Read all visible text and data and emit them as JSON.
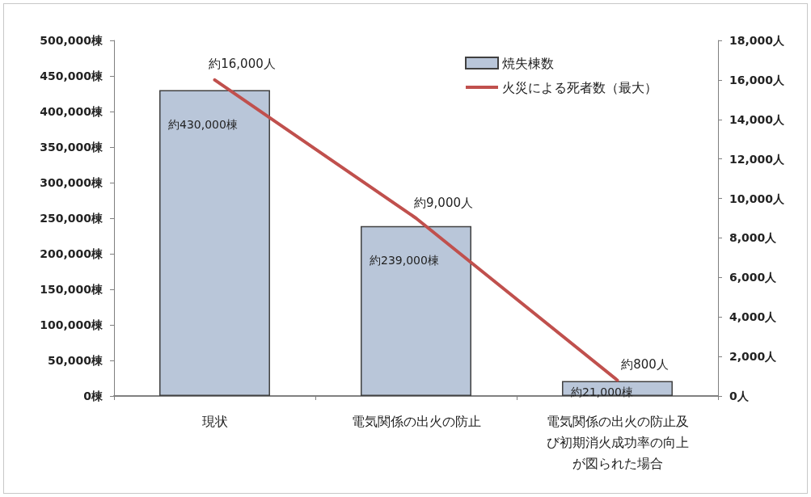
{
  "chart_data": {
    "type": "bar",
    "categories": [
      "現状",
      "電気関係の出火の防止",
      "電気関係の出火の防止及び初期消火成功率の向上が図られた場合"
    ],
    "series": [
      {
        "name": "焼失棟数",
        "color": "#b9c6d9",
        "values": [
          430000,
          239000,
          21000
        ],
        "value_labels": [
          "約430,000棟",
          "約239,000棟",
          "約21,000棟"
        ]
      },
      {
        "name": "火災による死者数（最大）",
        "type": "line",
        "axis": "y2",
        "color": "#c0504d",
        "values": [
          16000,
          9000,
          800
        ],
        "value_labels": [
          "約16,000人",
          "約9,000人",
          "約800人"
        ]
      }
    ],
    "ylim": [
      0,
      500000
    ],
    "yticks": [
      {
        "value": 0,
        "label": "0棟"
      },
      {
        "value": 50000,
        "label": "50,000棟"
      },
      {
        "value": 100000,
        "label": "100,000棟"
      },
      {
        "value": 150000,
        "label": "150,000棟"
      },
      {
        "value": 200000,
        "label": "200,000棟"
      },
      {
        "value": 250000,
        "label": "250,000棟"
      },
      {
        "value": 300000,
        "label": "300,000棟"
      },
      {
        "value": 350000,
        "label": "350,000棟"
      },
      {
        "value": 400000,
        "label": "400,000棟"
      },
      {
        "value": 450000,
        "label": "450,000棟"
      },
      {
        "value": 500000,
        "label": "500,000棟"
      }
    ],
    "y2lim": [
      0,
      18000
    ],
    "y2ticks": [
      {
        "value": 0,
        "label": "0人"
      },
      {
        "value": 2000,
        "label": "2,000人"
      },
      {
        "value": 4000,
        "label": "4,000人"
      },
      {
        "value": 6000,
        "label": "6,000人"
      },
      {
        "value": 8000,
        "label": "8,000人"
      },
      {
        "value": 10000,
        "label": "10,000人"
      },
      {
        "value": 12000,
        "label": "12,000人"
      },
      {
        "value": 14000,
        "label": "14,000人"
      },
      {
        "value": 16000,
        "label": "16,000人"
      },
      {
        "value": 18000,
        "label": "18,000人"
      }
    ],
    "grid": false,
    "legend": "top right",
    "marker": "none",
    "line_style": "solid"
  }
}
